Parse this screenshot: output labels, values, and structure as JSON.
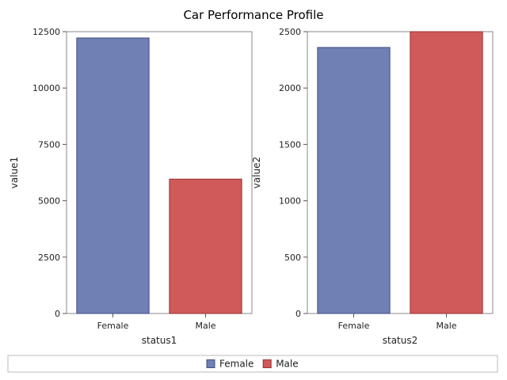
{
  "chart_data": {
    "type": "bar",
    "title": "Car Performance Profile",
    "legend": {
      "placement": "bottom",
      "entries": [
        {
          "name": "Female",
          "color": "#7080b5"
        },
        {
          "name": "Male",
          "color": "#d05a5a"
        }
      ]
    },
    "panels": [
      {
        "categories": [
          "Female",
          "Male"
        ],
        "values": [
          12220,
          5960
        ],
        "xlabel": "status1",
        "ylabel": "value1",
        "ylim": [
          0,
          12500
        ],
        "yticks": [
          0,
          2500,
          5000,
          7500,
          10000,
          12500
        ],
        "ytick_labels": [
          "0",
          "2500",
          "5000",
          "7500",
          "10000",
          "12500"
        ]
      },
      {
        "categories": [
          "Female",
          "Male"
        ],
        "values": [
          2360,
          2500
        ],
        "xlabel": "status2",
        "ylabel": "value2",
        "ylim": [
          0,
          2500
        ],
        "yticks": [
          0,
          500,
          1000,
          1500,
          2000,
          2500
        ],
        "ytick_labels": [
          "0",
          "500",
          "1000",
          "1500",
          "2000",
          "2500"
        ]
      }
    ]
  }
}
